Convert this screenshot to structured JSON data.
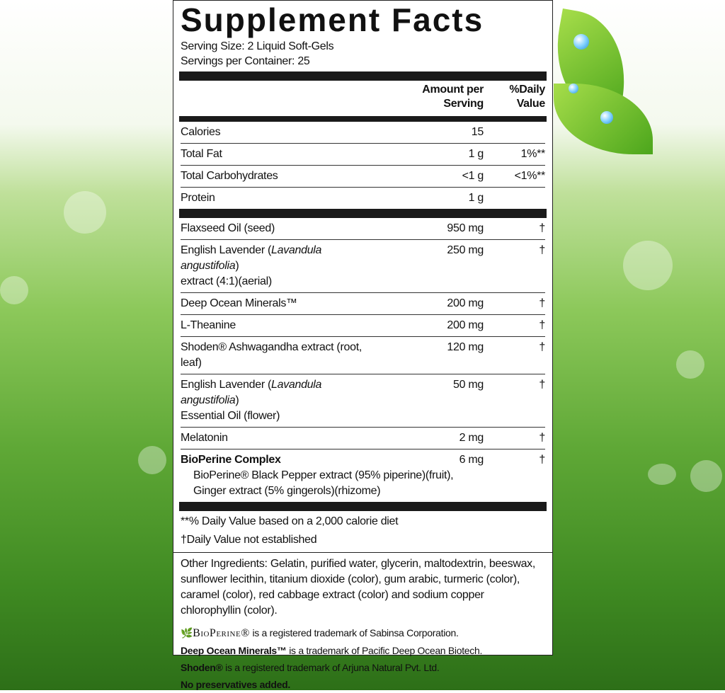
{
  "title": "Supplement Facts",
  "serving_size": "Serving Size:  2 Liquid Soft-Gels",
  "servings_per_container": "Servings per Container:  25",
  "header": {
    "amount_line1": "Amount per",
    "amount_line2": "Serving",
    "dv_line1": "%Daily",
    "dv_line2": "Value"
  },
  "nutrition": [
    {
      "name": "Calories",
      "amount": "15",
      "dv": ""
    },
    {
      "name": "Total Fat",
      "amount": "1 g",
      "dv": "1%**"
    },
    {
      "name": "Total Carbohydrates",
      "amount": "<1 g",
      "dv": "<1%**"
    },
    {
      "name": "Protein",
      "amount": "1 g",
      "dv": ""
    }
  ],
  "ingredients": [
    {
      "name": "Flaxseed Oil (seed)",
      "amount": "950 mg",
      "dv": "†"
    },
    {
      "name_pre": "English Lavender (",
      "name_italic": "Lavandula angustifolia",
      "name_post": ")",
      "line2": "extract (4:1)(aerial)",
      "amount": "250 mg",
      "dv": "†"
    },
    {
      "name": "Deep Ocean Minerals™",
      "amount": "200 mg",
      "dv": "†"
    },
    {
      "name": "L-Theanine",
      "amount": "200 mg",
      "dv": "†"
    },
    {
      "name": "Shoden® Ashwagandha extract (root, leaf)",
      "amount": "120 mg",
      "dv": "†"
    },
    {
      "name_pre": "English Lavender (",
      "name_italic": "Lavandula angustifolia",
      "name_post": ")",
      "line2": "Essential Oil (flower)",
      "amount": "50 mg",
      "dv": "†"
    },
    {
      "name": "Melatonin",
      "amount": "2 mg",
      "dv": "†"
    },
    {
      "name": "BioPerine Complex",
      "amount": "6 mg",
      "dv": "†",
      "sub1": "BioPerine® Black Pepper extract (95% piperine)(fruit),",
      "sub2": "Ginger extract (5% gingerols)(rhizome)"
    }
  ],
  "footnotes": [
    "**% Daily Value based on a 2,000 calorie diet",
    "†Daily Value not established"
  ],
  "other_ingredients": "Other Ingredients:  Gelatin, purified water, glycerin, maltodextrin, beeswax, sunflower lecithin, titanium dioxide (color), gum arabic, turmeric (color), caramel (color), red cabbage extract (color) and sodium copper chlorophyllin (color).",
  "trademarks": {
    "bioperine_logo": "BioPerine®",
    "bioperine_text": " is a registered trademark of Sabinsa Corporation.",
    "dom_brand": "Deep Ocean Minerals™",
    "dom_text": " is a trademark of Pacific Deep Ocean Biotech.",
    "shoden_brand": "Shoden®",
    "shoden_text": "  is a registered trademark of Arjuna Natural Pvt. Ltd.",
    "no_preservatives": "No preservatives added."
  }
}
